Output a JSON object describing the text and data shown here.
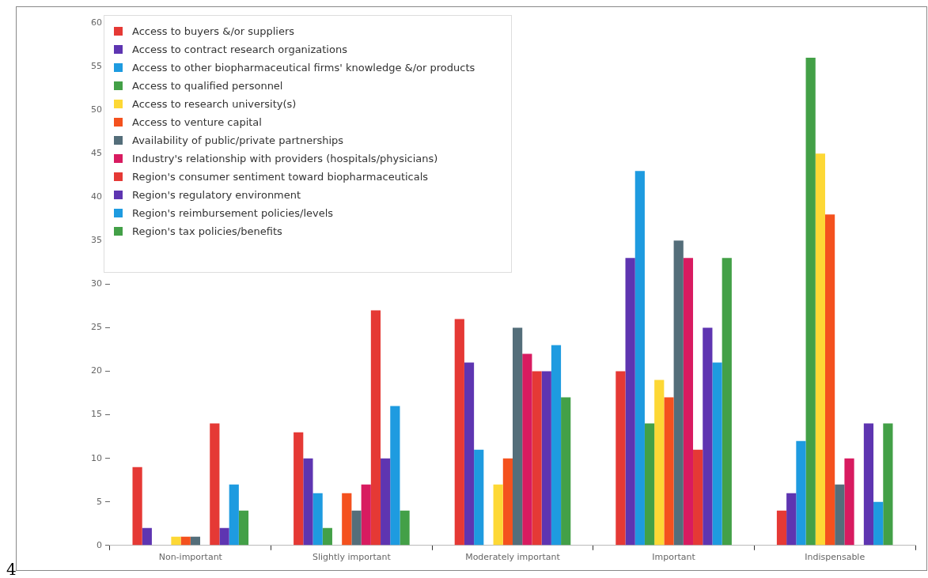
{
  "chart_data": {
    "type": "bar",
    "categories": [
      "Non-important",
      "Slightly important",
      "Moderately important",
      "Important",
      "Indispensable"
    ],
    "series": [
      {
        "name": "Access to buyers &/or suppliers",
        "color": "#e53935",
        "values": [
          9,
          13,
          26,
          20,
          4
        ]
      },
      {
        "name": "Access to contract research organizations",
        "color": "#5e35b1",
        "values": [
          2,
          10,
          21,
          33,
          6
        ]
      },
      {
        "name": "Access to other biopharmaceutical firms' knowledge &/or products",
        "color": "#1e9be0",
        "values": [
          0,
          6,
          11,
          43,
          12
        ]
      },
      {
        "name": "Access to qualified personnel",
        "color": "#43a047",
        "values": [
          0,
          2,
          0,
          14,
          56
        ]
      },
      {
        "name": "Access to research university(s)",
        "color": "#fdd835",
        "values": [
          1,
          0,
          7,
          19,
          45
        ]
      },
      {
        "name": "Access to venture capital",
        "color": "#f4511e",
        "values": [
          1,
          6,
          10,
          17,
          38
        ]
      },
      {
        "name": "Availability of public/private partnerships",
        "color": "#546e7a",
        "values": [
          1,
          4,
          25,
          35,
          7
        ]
      },
      {
        "name": "Industry's relationship with providers (hospitals/physicians)",
        "color": "#d81b60",
        "values": [
          0,
          7,
          22,
          33,
          10
        ]
      },
      {
        "name": "Region's consumer sentiment toward biopharmaceuticals",
        "color": "#e53935",
        "values": [
          14,
          27,
          20,
          11,
          0
        ]
      },
      {
        "name": "Region's regulatory environment",
        "color": "#5e35b1",
        "values": [
          2,
          10,
          20,
          25,
          14
        ]
      },
      {
        "name": "Region's reimbursement policies/levels",
        "color": "#1e9be0",
        "values": [
          7,
          16,
          23,
          21,
          5
        ]
      },
      {
        "name": "Region's tax policies/benefits",
        "color": "#43a047",
        "values": [
          4,
          4,
          17,
          33,
          14
        ]
      }
    ],
    "ylim": [
      0,
      60
    ],
    "yticks": [
      0,
      5,
      10,
      15,
      20,
      25,
      30,
      35,
      40,
      45,
      50,
      55,
      60
    ],
    "grid": false,
    "legend": "top left",
    "annotations": [
      "4"
    ]
  }
}
